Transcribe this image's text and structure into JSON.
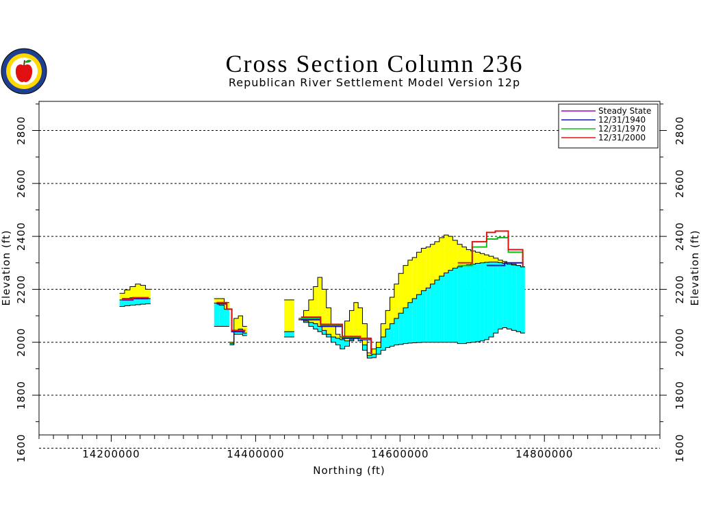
{
  "chart_data": {
    "type": "area",
    "title": "Cross Section Column 236",
    "subtitle": "Republican River Settlement Model Version 12p",
    "xlabel": "Northing (ft)",
    "ylabel": "Elevation (ft)",
    "xlim": [
      14100000,
      14960000
    ],
    "ylim": [
      1650,
      2910
    ],
    "x_ticks": [
      14200000,
      14400000,
      14600000,
      14800000
    ],
    "x_tick_labels": [
      "14200000",
      "14400000",
      "14600000",
      "14800000"
    ],
    "y_ticks": [
      1600,
      1800,
      2000,
      2200,
      2400,
      2600,
      2800
    ],
    "y_tick_labels": [
      "1600",
      "1800",
      "2000",
      "2200",
      "2400",
      "2600",
      "2800"
    ],
    "grid": "horizontal dashed at y ticks",
    "legend_position": "top-right",
    "legend": [
      {
        "name": "Steady State",
        "color": "#a000c0"
      },
      {
        "name": "12/31/1940",
        "color": "#1010c0"
      },
      {
        "name": "12/31/1970",
        "color": "#10c010"
      },
      {
        "name": "12/31/2000",
        "color": "#e01010"
      }
    ],
    "fills": {
      "yellow": "#ffff00",
      "cyan": "#00ffff"
    },
    "segments": [
      {
        "x": [
          14215000,
          14222000,
          14230000,
          14237000,
          14244000,
          14251000
        ],
        "top": [
          2185,
          2198,
          2210,
          2220,
          2215,
          2200
        ],
        "water": [
          2160,
          2165,
          2168,
          2167,
          2166,
          2165
        ],
        "base": [
          2135,
          2138,
          2140,
          2142,
          2144,
          2145
        ]
      },
      {
        "x": [
          14346000,
          14353000,
          14360000
        ],
        "top": [
          2165,
          2165,
          2150
        ],
        "water": [
          2148,
          2140,
          2125
        ],
        "base": [
          2060,
          2060,
          2060
        ]
      },
      {
        "x": [
          14367000,
          14373000,
          14379000,
          14385000
        ],
        "top": [
          2000,
          2090,
          2100,
          2060
        ],
        "water": [
          1995,
          2045,
          2050,
          2035
        ],
        "base": [
          1990,
          2030,
          2030,
          2025
        ]
      },
      {
        "x": [
          14443000,
          14450000
        ],
        "top": [
          2160,
          2160
        ],
        "water": [
          2040,
          2040
        ],
        "base": [
          2020,
          2020
        ]
      },
      {
        "x": [
          14463000,
          14470000,
          14477000,
          14483000,
          14489000,
          14495000,
          14501000,
          14508000,
          14514000,
          14520000,
          14527000,
          14533000,
          14539000,
          14545000,
          14551000,
          14558000,
          14564000,
          14570000,
          14577000,
          14583000,
          14589000,
          14595000,
          14601000,
          14608000,
          14614000,
          14620000,
          14626000,
          14633000,
          14639000,
          14645000,
          14651000,
          14658000,
          14664000,
          14670000,
          14676000,
          14683000,
          14689000,
          14695000,
          14701000,
          14708000,
          14714000,
          14720000,
          14726000,
          14733000,
          14739000,
          14745000,
          14751000,
          14758000,
          14764000,
          14770000
        ],
        "top": [
          2090,
          2120,
          2160,
          2210,
          2245,
          2200,
          2130,
          2060,
          2030,
          2020,
          2080,
          2120,
          2150,
          2130,
          2070,
          1960,
          1975,
          2000,
          2070,
          2120,
          2170,
          2220,
          2260,
          2290,
          2310,
          2320,
          2340,
          2355,
          2360,
          2370,
          2380,
          2395,
          2405,
          2400,
          2385,
          2370,
          2360,
          2350,
          2345,
          2340,
          2335,
          2330,
          2325,
          2318,
          2310,
          2305,
          2300,
          2295,
          2290,
          2285
        ],
        "water": [
          2085,
          2080,
          2075,
          2070,
          2060,
          2045,
          2030,
          2020,
          2015,
          2010,
          2005,
          2010,
          2020,
          2015,
          1990,
          1950,
          1955,
          1980,
          2020,
          2050,
          2070,
          2090,
          2110,
          2130,
          2150,
          2165,
          2180,
          2195,
          2205,
          2220,
          2235,
          2250,
          2262,
          2272,
          2280,
          2285,
          2290,
          2293,
          2295,
          2298,
          2300,
          2302,
          2303,
          2303,
          2301,
          2298,
          2295,
          2292,
          2290,
          2285
        ],
        "base": [
          2085,
          2075,
          2060,
          2050,
          2040,
          2030,
          2020,
          2000,
          1990,
          1975,
          1985,
          2005,
          2015,
          2005,
          1970,
          1940,
          1942,
          1955,
          1970,
          1980,
          1985,
          1990,
          1992,
          1995,
          1997,
          1998,
          1999,
          2000,
          2000,
          2000,
          2000,
          2000,
          2000,
          2000,
          2000,
          1995,
          1995,
          1998,
          2000,
          2002,
          2005,
          2010,
          2020,
          2035,
          2050,
          2055,
          2050,
          2045,
          2040,
          2035
        ]
      }
    ],
    "series": [
      {
        "name": "Steady State",
        "x": [
          14215000,
          14230000,
          14251000
        ],
        "y": [
          2165,
          2168,
          2165
        ]
      },
      {
        "name": "12/31/1940",
        "x": [
          14215000,
          14230000,
          14251000,
          14346000,
          14360000,
          14367000,
          14385000,
          14463000,
          14490000,
          14520000,
          14545000,
          14560000,
          14600000,
          14640000,
          14680000,
          14720000,
          14745000,
          14770000
        ],
        "y": [
          2160,
          2165,
          2163,
          2145,
          2125,
          2040,
          2040,
          2085,
          2060,
          2015,
          2010,
          1955,
          2090,
          2190,
          2260,
          2290,
          2300,
          2285
        ]
      },
      {
        "name": "12/31/1970",
        "x": [
          14463000,
          14490000,
          14520000,
          14545000,
          14560000,
          14600000,
          14640000,
          14680000,
          14700000,
          14720000,
          14735000,
          14750000,
          14770000
        ],
        "y": [
          2090,
          2065,
          2020,
          2012,
          1958,
          2100,
          2200,
          2290,
          2360,
          2390,
          2395,
          2340,
          2285
        ]
      },
      {
        "name": "12/31/2000",
        "x": [
          14215000,
          14230000,
          14251000,
          14346000,
          14360000,
          14367000,
          14385000,
          14463000,
          14490000,
          14520000,
          14545000,
          14560000,
          14600000,
          14640000,
          14680000,
          14700000,
          14720000,
          14732000,
          14750000,
          14770000
        ],
        "y": [
          2162,
          2168,
          2166,
          2150,
          2125,
          2045,
          2042,
          2095,
          2068,
          2022,
          2015,
          1960,
          2100,
          2205,
          2300,
          2380,
          2415,
          2420,
          2350,
          2285
        ]
      }
    ]
  }
}
